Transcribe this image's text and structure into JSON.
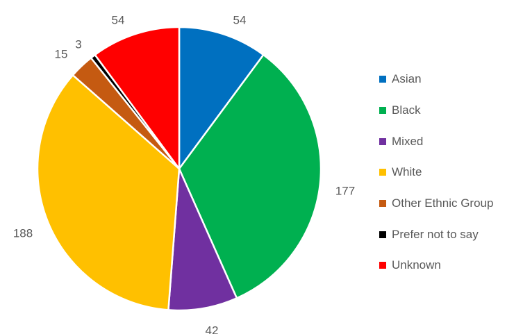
{
  "chart_data": {
    "type": "pie",
    "categories": [
      "Asian",
      "Black",
      "Mixed",
      "White",
      "Other Ethnic Group",
      "Prefer not to say",
      "Unknown"
    ],
    "values": [
      54,
      177,
      42,
      188,
      15,
      3,
      54
    ],
    "colors": [
      "#0070C0",
      "#00B050",
      "#7030A0",
      "#FFC000",
      "#C55A11",
      "#000000",
      "#FF0000"
    ],
    "labels": [
      "54",
      "177",
      "42",
      "188",
      "15",
      "3",
      "54"
    ],
    "legend_position": "right",
    "start_angle": "top, clockwise"
  }
}
